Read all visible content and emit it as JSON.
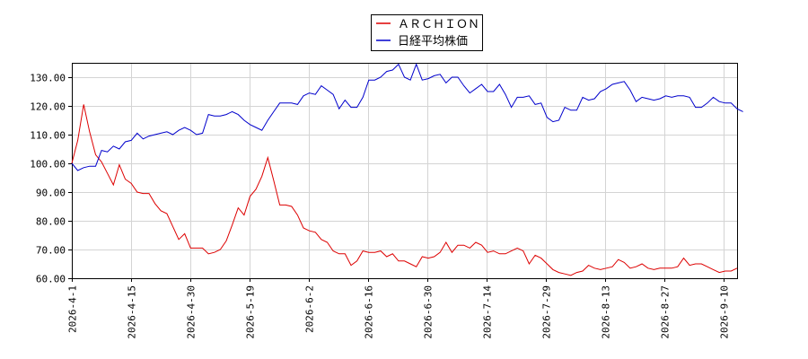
{
  "chart_data": {
    "type": "line",
    "title": "",
    "xlabel": "",
    "ylabel": "",
    "ylim": [
      60,
      135
    ],
    "y_ticks": [
      "60.00",
      "70.00",
      "80.00",
      "90.00",
      "100.00",
      "110.00",
      "120.00",
      "130.00"
    ],
    "x_ticks": [
      "2026-4-1",
      "2026-4-15",
      "2026-4-30",
      "2026-5-19",
      "2026-6-2",
      "2026-6-16",
      "2026-6-30",
      "2026-7-14",
      "2026-7-29",
      "2026-8-13",
      "2026-8-27",
      "2026-9-10"
    ],
    "grid": true,
    "legend_position": "top-center",
    "series": [
      {
        "name": "ＡＲＣＨＩＯＮ",
        "color": "#dd0000",
        "values": [
          100,
          108,
          120.5,
          111,
          103,
          100.5,
          96.5,
          92.5,
          99.5,
          94.5,
          93,
          90,
          89.5,
          89.5,
          86,
          83.5,
          82.5,
          78,
          73.5,
          75.5,
          70.5,
          70.5,
          70.5,
          68.5,
          69,
          70,
          73,
          78.5,
          84.5,
          82,
          88.5,
          91,
          95.5,
          102,
          94,
          85.5,
          85.5,
          85,
          82,
          77.5,
          76.5,
          76,
          73.5,
          72.5,
          69.5,
          68.5,
          68.5,
          64.5,
          66,
          69.5,
          69,
          69,
          69.5,
          67.5,
          68.5,
          66,
          66,
          65,
          64,
          67.5,
          67,
          67.5,
          69,
          72.5,
          69,
          71.5,
          71.5,
          70.5,
          72.5,
          71.5,
          69,
          69.5,
          68.5,
          68.5,
          69.5,
          70.5,
          69.5,
          65,
          68,
          67,
          65,
          63,
          62,
          61.5,
          61,
          62,
          62.5,
          64.5,
          63.5,
          63,
          63.5,
          64,
          66.5,
          65.5,
          63.5,
          64,
          65,
          63.5,
          63,
          63.5,
          63.5,
          63.5,
          64,
          67,
          64.5,
          65,
          65,
          64,
          63,
          62,
          62.5,
          62.5,
          63.5
        ]
      },
      {
        "name": "日経平均株価",
        "color": "#0000cc",
        "values": [
          100,
          97.5,
          98.5,
          99,
          99,
          104.5,
          104,
          106,
          105,
          107.5,
          108,
          110.5,
          108.5,
          109.5,
          110,
          110.5,
          111,
          110,
          111.5,
          112.5,
          111.5,
          110,
          110.5,
          117,
          116.5,
          116.5,
          117,
          118,
          117,
          115,
          113.5,
          112.5,
          111.5,
          115,
          118,
          121,
          121,
          121,
          120.5,
          123.5,
          124.5,
          124,
          127,
          125.5,
          124,
          119,
          122,
          119.5,
          119.5,
          123,
          129,
          129,
          130,
          132,
          132.5,
          134.5,
          130,
          129,
          134.5,
          129,
          129.5,
          130.5,
          131,
          128,
          130,
          130,
          127,
          124.5,
          126,
          127.5,
          125,
          125,
          127.5,
          124,
          119.5,
          123,
          123,
          123.5,
          120.5,
          121,
          116,
          114.5,
          115,
          119.5,
          118.5,
          118.5,
          123,
          122,
          122.5,
          125,
          126,
          127.5,
          128,
          128.5,
          125.5,
          121.5,
          123,
          122.5,
          122,
          122.5,
          123.5,
          123,
          123.5,
          123.5,
          123,
          119.5,
          119.5,
          121,
          123,
          121.5,
          121,
          121,
          119,
          118
        ]
      }
    ]
  }
}
